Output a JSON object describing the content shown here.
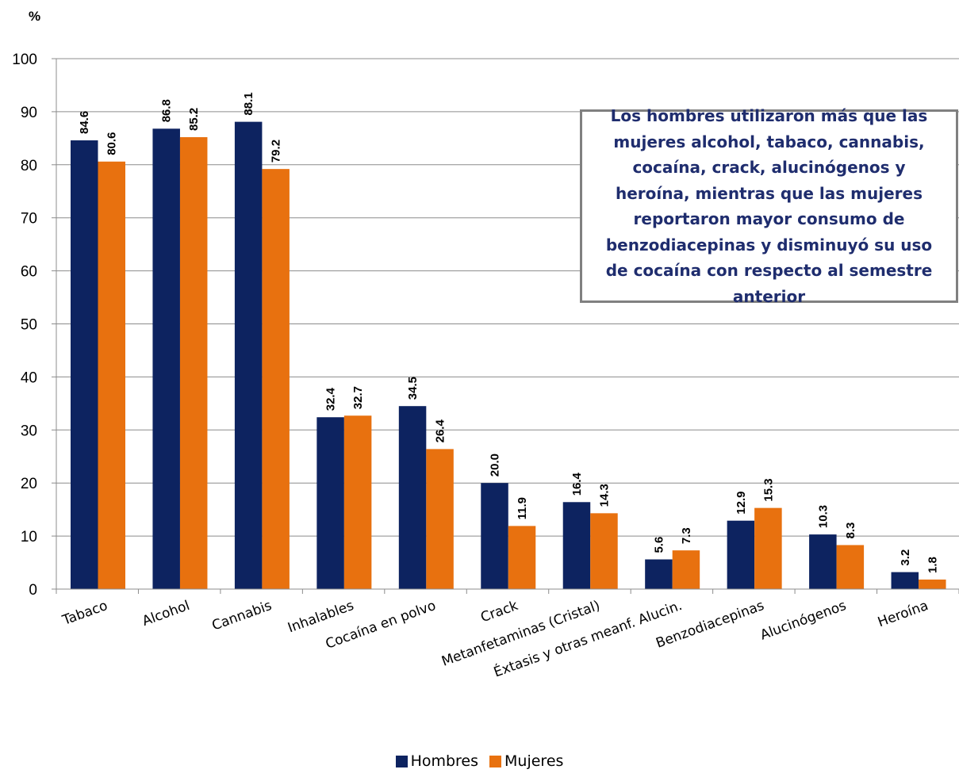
{
  "chart_data": {
    "type": "bar",
    "title": "",
    "xlabel": "",
    "ylabel": "%",
    "ylim": [
      0,
      100
    ],
    "yticks": [
      0,
      10,
      20,
      30,
      40,
      50,
      60,
      70,
      80,
      90,
      100
    ],
    "grid": true,
    "legend_position": "bottom",
    "categories": [
      "Tabaco",
      "Alcohol",
      "Cannabis",
      "Inhalables",
      "Cocaína en polvo",
      "Crack",
      "Metanfetaminas (Cristal)",
      "Éxtasis y otras meanf. Alucin.",
      "Benzodiacepinas",
      "Alucinógenos",
      "Heroína"
    ],
    "series": [
      {
        "name": "Hombres",
        "color": "#0d2360",
        "values": [
          84.6,
          86.8,
          88.1,
          32.4,
          34.5,
          20.0,
          16.4,
          5.6,
          12.9,
          10.3,
          3.2
        ],
        "labels": [
          "84.6",
          "86.8",
          "88.1",
          "32.4",
          "34.5",
          "20.0",
          "16.4",
          "5.6",
          "12.9",
          "10.3",
          "3.2"
        ]
      },
      {
        "name": "Mujeres",
        "color": "#e8710f",
        "values": [
          80.6,
          85.2,
          79.2,
          32.7,
          26.4,
          11.9,
          14.3,
          7.3,
          15.3,
          8.3,
          1.8
        ],
        "labels": [
          "80.6",
          "85.2",
          "79.2",
          "32.7",
          "26.4",
          "11.9",
          "14.3",
          "7.3",
          "15.3",
          "8.3",
          "1.8"
        ]
      }
    ],
    "annotation": "Los hombres utilizaron más que las mujeres alcohol, tabaco, cannabis, cocaína, crack, alucinógenos y heroína, mientras que las mujeres reportaron mayor consumo de benzodiacepinas y disminuyó su uso de cocaína con respecto al semestre anterior"
  }
}
